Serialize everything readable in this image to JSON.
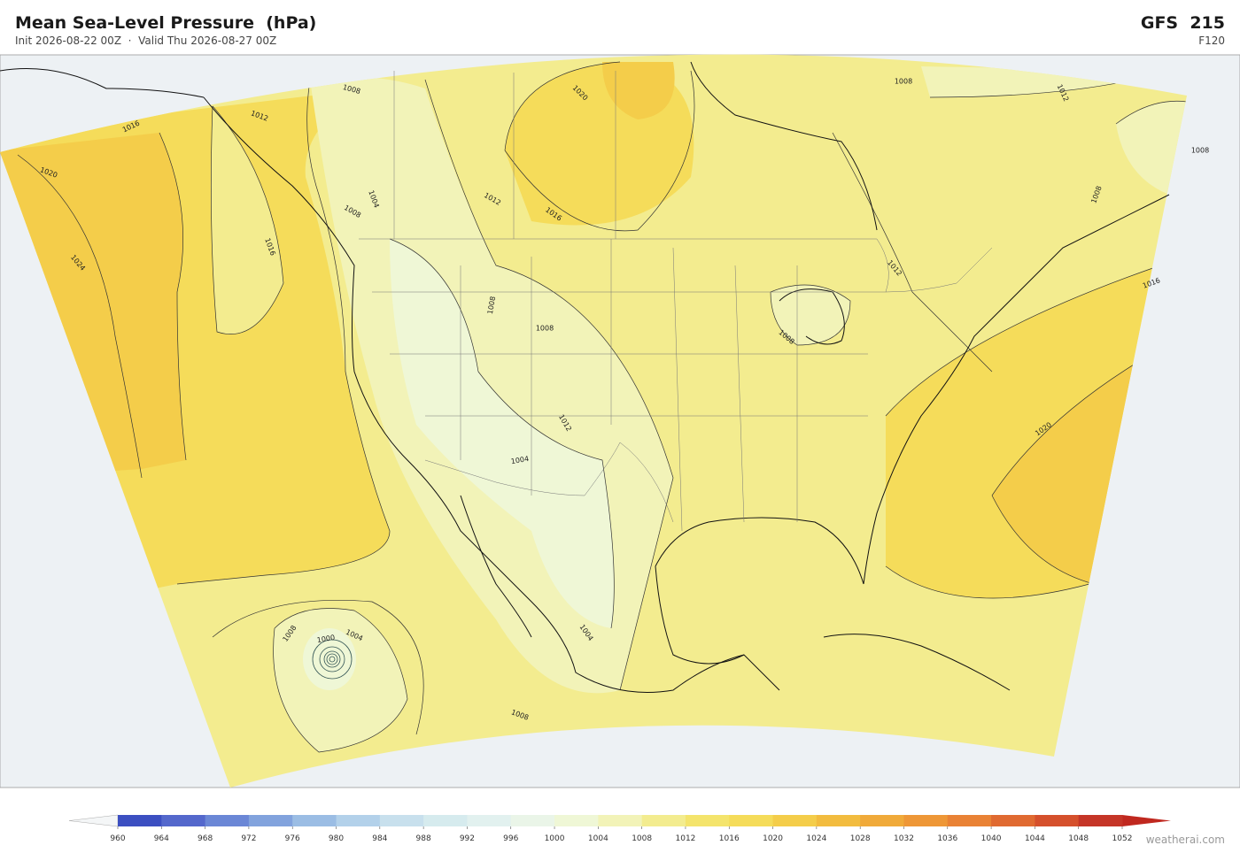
{
  "header": {
    "title": "Mean Sea-Level Pressure  (hPa)",
    "subtitle": "Init 2026-08-22 00Z  ·  Valid Thu 2026-08-27 00Z",
    "model": "GFS  215",
    "forecast_hour": "F120"
  },
  "map": {
    "contour_labels": [
      1008,
      1012,
      1016,
      1020,
      1024,
      1016,
      1008,
      1004,
      1012,
      1016,
      1020,
      1008,
      1012,
      1008,
      1008,
      1012,
      1016,
      1020,
      1008,
      1008,
      1012,
      1004,
      1008,
      1008,
      1000,
      1004,
      1004,
      1008
    ]
  },
  "colorbar": {
    "ticks": [
      960,
      964,
      968,
      972,
      976,
      980,
      984,
      988,
      992,
      996,
      1000,
      1004,
      1008,
      1012,
      1016,
      1020,
      1024,
      1028,
      1032,
      1036,
      1040,
      1044,
      1048,
      1052
    ],
    "colors": [
      "#3c4fc1",
      "#5468cc",
      "#6b87d6",
      "#82a3dd",
      "#9bbde4",
      "#b3d1ea",
      "#c8e0ed",
      "#d6ebee",
      "#e2f1ef",
      "#eaf5e8",
      "#eff7d6",
      "#f2f3b8",
      "#f3ec8f",
      "#f4e46c",
      "#f5dc5a",
      "#f4cd4a",
      "#f2bc3f",
      "#f0aa3a",
      "#ee9737",
      "#e98235",
      "#e06a31",
      "#d5502c",
      "#c53527"
    ],
    "under_color": "#f4f6f7",
    "over_color": "#c0281f"
  },
  "footer": {
    "credit": "weatherai.com"
  }
}
